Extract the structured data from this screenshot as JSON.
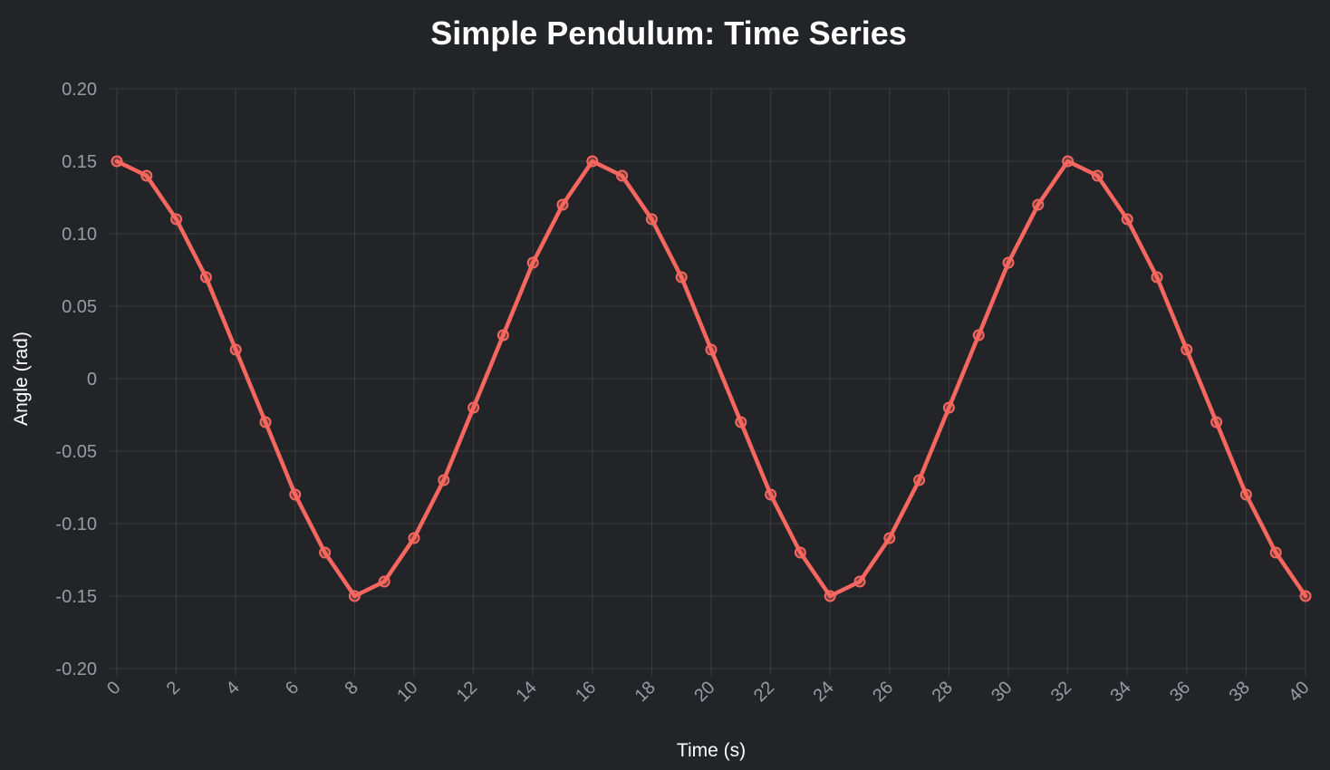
{
  "chart_data": {
    "type": "line",
    "title": "Simple Pendulum: Time Series",
    "xlabel": "Time (s)",
    "ylabel": "Angle (rad)",
    "xlim": [
      0,
      40
    ],
    "ylim": [
      -0.2,
      0.2
    ],
    "x_ticks": [
      "0",
      "2",
      "4",
      "6",
      "8",
      "10",
      "12",
      "14",
      "16",
      "18",
      "20",
      "22",
      "24",
      "26",
      "28",
      "30",
      "32",
      "34",
      "36",
      "38",
      "40"
    ],
    "y_ticks": [
      "0.20",
      "0.15",
      "0.10",
      "0.05",
      "0",
      "-0.05",
      "-0.10",
      "-0.15",
      "-0.20"
    ],
    "grid": true,
    "colors": {
      "line": "#f8675f",
      "background": "#232428",
      "grid": "#3a3b40"
    },
    "series": [
      {
        "x": [
          0,
          1,
          2,
          3,
          4,
          5,
          6,
          7,
          8,
          9,
          10,
          11,
          12,
          13,
          14,
          15,
          16,
          17,
          18,
          19,
          20,
          21,
          22,
          23,
          24,
          25,
          26,
          27,
          28,
          29,
          30,
          31,
          32,
          33,
          34,
          35,
          36,
          37,
          38,
          39,
          40
        ],
        "values": [
          0.15,
          0.14,
          0.11,
          0.07,
          0.02,
          -0.03,
          -0.08,
          -0.12,
          -0.15,
          -0.14,
          -0.11,
          -0.07,
          -0.02,
          0.03,
          0.08,
          0.12,
          0.15,
          0.14,
          0.11,
          0.07,
          0.02,
          -0.03,
          -0.08,
          -0.12,
          -0.15,
          -0.14,
          -0.11,
          -0.07,
          -0.02,
          0.03,
          0.08,
          0.12,
          0.15,
          0.14,
          0.11,
          0.07,
          0.02,
          -0.03,
          -0.08,
          -0.12,
          -0.15
        ]
      }
    ]
  }
}
